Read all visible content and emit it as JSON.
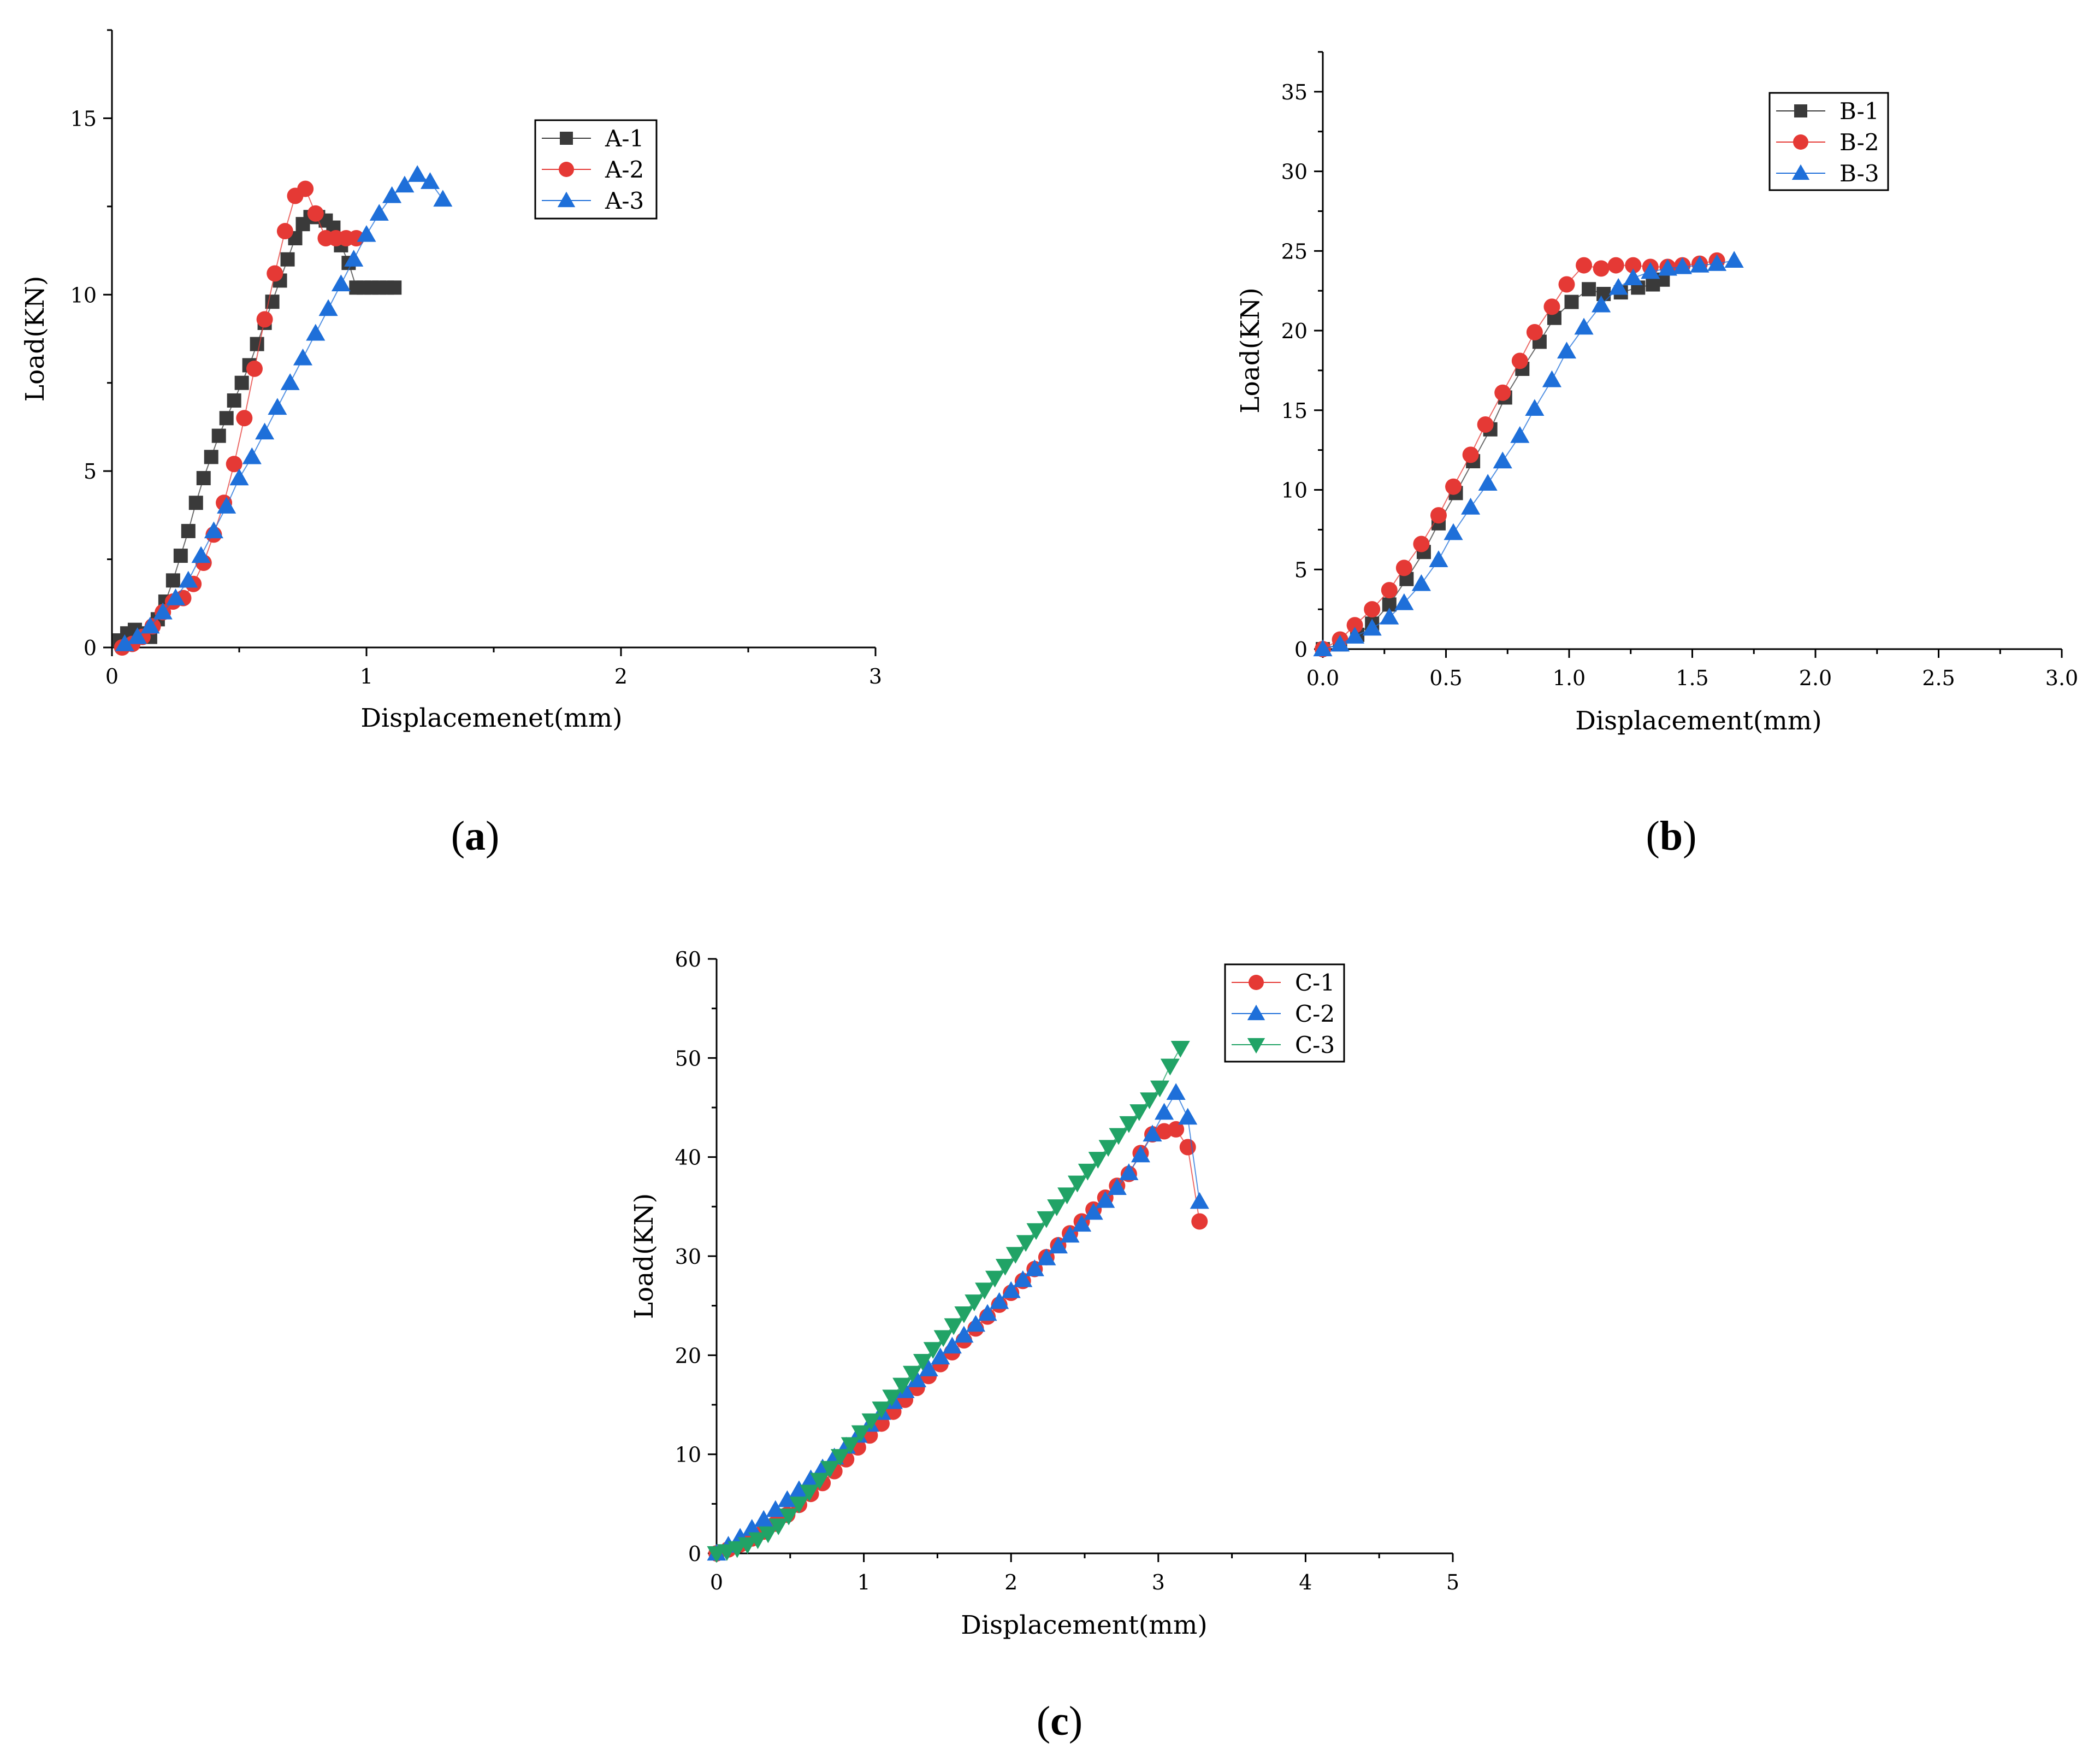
{
  "colors": {
    "black_series": "#3a3a3a",
    "red_series": "#e53935",
    "blue_series": "#1e6fd9",
    "green_series": "#21a366",
    "axis": "#000000"
  },
  "chart_data": [
    {
      "type": "scatter",
      "panel": "a",
      "caption_label": "a",
      "xlabel": "Displacemenet(mm)",
      "ylabel": "Load(KN)",
      "xlim": [
        0,
        3
      ],
      "ylim": [
        0,
        17.5
      ],
      "xticks": [
        0,
        1,
        2,
        3
      ],
      "xtick_labels": [
        "0",
        "1",
        "2",
        "3"
      ],
      "yticks": [
        0,
        5,
        10,
        15
      ],
      "ytick_labels": [
        "0",
        "5",
        "10",
        "15"
      ],
      "legend_position": "upper-middle",
      "series": [
        {
          "name": "A-1",
          "marker": "square",
          "color": "#3a3a3a",
          "x": [
            0.03,
            0.06,
            0.09,
            0.12,
            0.15,
            0.18,
            0.21,
            0.24,
            0.27,
            0.3,
            0.33,
            0.36,
            0.39,
            0.42,
            0.45,
            0.48,
            0.51,
            0.54,
            0.57,
            0.6,
            0.63,
            0.66,
            0.69,
            0.72,
            0.75,
            0.78,
            0.81,
            0.84,
            0.87,
            0.9,
            0.93,
            0.96,
            0.99,
            1.02,
            1.05,
            1.08,
            1.11
          ],
          "y": [
            0.2,
            0.4,
            0.5,
            0.4,
            0.3,
            0.8,
            1.3,
            1.9,
            2.6,
            3.3,
            4.1,
            4.8,
            5.4,
            6.0,
            6.5,
            7.0,
            7.5,
            8.0,
            8.6,
            9.2,
            9.8,
            10.4,
            11.0,
            11.6,
            12.0,
            12.2,
            12.2,
            12.1,
            11.9,
            11.4,
            10.9,
            10.2,
            10.2,
            10.2,
            10.2,
            10.2,
            10.2
          ]
        },
        {
          "name": "A-2",
          "marker": "circle",
          "color": "#e53935",
          "x": [
            0.04,
            0.08,
            0.12,
            0.16,
            0.2,
            0.24,
            0.28,
            0.32,
            0.36,
            0.4,
            0.44,
            0.48,
            0.52,
            0.56,
            0.6,
            0.64,
            0.68,
            0.72,
            0.76,
            0.8,
            0.84,
            0.88,
            0.92,
            0.96
          ],
          "y": [
            0.0,
            0.1,
            0.3,
            0.6,
            1.0,
            1.3,
            1.4,
            1.8,
            2.4,
            3.2,
            4.1,
            5.2,
            6.5,
            7.9,
            9.3,
            10.6,
            11.8,
            12.8,
            13.0,
            12.3,
            11.6,
            11.6,
            11.6,
            11.6
          ]
        },
        {
          "name": "A-3",
          "marker": "triangle-up",
          "color": "#1e6fd9",
          "x": [
            0.05,
            0.1,
            0.15,
            0.2,
            0.25,
            0.3,
            0.35,
            0.4,
            0.45,
            0.5,
            0.55,
            0.6,
            0.65,
            0.7,
            0.75,
            0.8,
            0.85,
            0.9,
            0.95,
            1.0,
            1.05,
            1.1,
            1.15,
            1.2,
            1.25,
            1.3
          ],
          "y": [
            0.1,
            0.3,
            0.6,
            1.0,
            1.4,
            1.9,
            2.6,
            3.3,
            4.0,
            4.8,
            5.4,
            6.1,
            6.8,
            7.5,
            8.2,
            8.9,
            9.6,
            10.3,
            11.0,
            11.7,
            12.3,
            12.8,
            13.1,
            13.4,
            13.2,
            12.7
          ]
        }
      ]
    },
    {
      "type": "scatter",
      "panel": "b",
      "caption_label": "b",
      "xlabel": "Displacement(mm)",
      "ylabel": "Load(KN)",
      "xlim": [
        0,
        3.0
      ],
      "ylim": [
        0,
        37.5
      ],
      "xticks": [
        0,
        0.5,
        1.0,
        1.5,
        2.0,
        2.5,
        3.0
      ],
      "xtick_labels": [
        "0.0",
        "0.5",
        "1.0",
        "1.5",
        "2.0",
        "2.5",
        "3.0"
      ],
      "yticks": [
        0,
        5,
        10,
        15,
        20,
        25,
        30,
        35
      ],
      "ytick_labels": [
        "0",
        "5",
        "10",
        "15",
        "20",
        "25",
        "30",
        "35"
      ],
      "legend_position": "upper-middle-right",
      "series": [
        {
          "name": "B-1",
          "marker": "square",
          "color": "#3a3a3a",
          "x": [
            0.0,
            0.07,
            0.14,
            0.2,
            0.27,
            0.34,
            0.41,
            0.47,
            0.54,
            0.61,
            0.68,
            0.74,
            0.81,
            0.88,
            0.94,
            1.01,
            1.08,
            1.14,
            1.21,
            1.28,
            1.34,
            1.38
          ],
          "y": [
            0.0,
            0.3,
            0.9,
            1.6,
            2.8,
            4.4,
            6.1,
            7.9,
            9.8,
            11.8,
            13.8,
            15.8,
            17.6,
            19.3,
            20.8,
            21.8,
            22.6,
            22.3,
            22.4,
            22.7,
            22.9,
            23.2
          ]
        },
        {
          "name": "B-2",
          "marker": "circle",
          "color": "#e53935",
          "x": [
            0.0,
            0.07,
            0.13,
            0.2,
            0.27,
            0.33,
            0.4,
            0.47,
            0.53,
            0.6,
            0.66,
            0.73,
            0.8,
            0.86,
            0.93,
            0.99,
            1.06,
            1.13,
            1.19,
            1.26,
            1.33,
            1.4,
            1.46,
            1.53,
            1.6
          ],
          "y": [
            0.0,
            0.6,
            1.5,
            2.5,
            3.7,
            5.1,
            6.6,
            8.4,
            10.2,
            12.2,
            14.1,
            16.1,
            18.1,
            19.9,
            21.5,
            22.9,
            24.1,
            23.9,
            24.1,
            24.1,
            24.0,
            24.0,
            24.1,
            24.2,
            24.4
          ]
        },
        {
          "name": "B-3",
          "marker": "triangle-up",
          "color": "#1e6fd9",
          "x": [
            0.0,
            0.07,
            0.13,
            0.2,
            0.27,
            0.33,
            0.4,
            0.47,
            0.53,
            0.6,
            0.67,
            0.73,
            0.8,
            0.86,
            0.93,
            0.99,
            1.06,
            1.13,
            1.2,
            1.26,
            1.33,
            1.4,
            1.46,
            1.53,
            1.6,
            1.67
          ],
          "y": [
            0.0,
            0.3,
            0.8,
            1.3,
            2.0,
            2.9,
            4.1,
            5.6,
            7.3,
            8.9,
            10.4,
            11.8,
            13.4,
            15.1,
            16.9,
            18.7,
            20.2,
            21.6,
            22.7,
            23.3,
            23.7,
            23.9,
            24.0,
            24.1,
            24.2,
            24.4
          ]
        }
      ]
    },
    {
      "type": "scatter",
      "panel": "c",
      "caption_label": "c",
      "xlabel": "Displacement(mm)",
      "ylabel": "Load(KN)",
      "xlim": [
        0,
        5
      ],
      "ylim": [
        0,
        60
      ],
      "xticks": [
        0,
        1,
        2,
        3,
        4,
        5
      ],
      "xtick_labels": [
        "0",
        "1",
        "2",
        "3",
        "4",
        "5"
      ],
      "yticks": [
        0,
        10,
        20,
        30,
        40,
        50,
        60
      ],
      "ytick_labels": [
        "0",
        "10",
        "20",
        "30",
        "40",
        "50",
        "60"
      ],
      "legend_position": "upper-right",
      "series": [
        {
          "name": "C-1",
          "marker": "circle",
          "color": "#e53935",
          "x": [
            0.0,
            0.08,
            0.16,
            0.24,
            0.32,
            0.4,
            0.48,
            0.56,
            0.64,
            0.72,
            0.8,
            0.88,
            0.96,
            1.04,
            1.12,
            1.2,
            1.28,
            1.36,
            1.44,
            1.52,
            1.6,
            1.68,
            1.76,
            1.84,
            1.92,
            2.0,
            2.08,
            2.16,
            2.24,
            2.32,
            2.4,
            2.48,
            2.56,
            2.64,
            2.72,
            2.8,
            2.88,
            2.96,
            3.04,
            3.12,
            3.2,
            3.28
          ],
          "y": [
            0.0,
            0.4,
            0.9,
            1.5,
            2.2,
            3.0,
            3.9,
            4.9,
            6.0,
            7.1,
            8.3,
            9.5,
            10.7,
            11.9,
            13.1,
            14.3,
            15.5,
            16.7,
            17.9,
            19.1,
            20.3,
            21.5,
            22.7,
            23.9,
            25.1,
            26.3,
            27.5,
            28.7,
            29.9,
            31.1,
            32.3,
            33.5,
            34.7,
            35.9,
            37.1,
            38.3,
            40.4,
            42.3,
            42.6,
            42.8,
            41.0,
            33.5
          ]
        },
        {
          "name": "C-2",
          "marker": "triangle-up",
          "color": "#1e6fd9",
          "x": [
            0.0,
            0.08,
            0.16,
            0.24,
            0.32,
            0.4,
            0.48,
            0.56,
            0.64,
            0.72,
            0.8,
            0.88,
            0.96,
            1.04,
            1.12,
            1.2,
            1.28,
            1.36,
            1.44,
            1.52,
            1.6,
            1.68,
            1.76,
            1.84,
            1.92,
            2.0,
            2.08,
            2.16,
            2.24,
            2.32,
            2.4,
            2.48,
            2.56,
            2.64,
            2.72,
            2.8,
            2.88,
            2.96,
            3.04,
            3.12,
            3.2,
            3.28
          ],
          "y": [
            0.0,
            0.8,
            1.6,
            2.5,
            3.4,
            4.4,
            5.4,
            6.4,
            7.5,
            8.6,
            9.7,
            10.8,
            11.9,
            13.0,
            14.2,
            15.3,
            16.4,
            17.5,
            18.6,
            19.8,
            20.9,
            22.0,
            23.1,
            24.2,
            25.4,
            26.5,
            27.6,
            28.7,
            29.8,
            31.0,
            32.1,
            33.2,
            34.4,
            35.6,
            36.9,
            38.4,
            40.2,
            42.3,
            44.5,
            46.5,
            44.0,
            35.5
          ]
        },
        {
          "name": "C-3",
          "marker": "triangle-down",
          "color": "#21a366",
          "x": [
            0.0,
            0.07,
            0.14,
            0.21,
            0.28,
            0.35,
            0.42,
            0.49,
            0.56,
            0.63,
            0.7,
            0.77,
            0.84,
            0.91,
            0.98,
            1.05,
            1.12,
            1.19,
            1.26,
            1.33,
            1.4,
            1.47,
            1.54,
            1.61,
            1.68,
            1.75,
            1.82,
            1.89,
            1.96,
            2.03,
            2.1,
            2.17,
            2.24,
            2.31,
            2.38,
            2.45,
            2.52,
            2.59,
            2.66,
            2.73,
            2.8,
            2.87,
            2.94,
            3.01,
            3.08,
            3.15
          ],
          "y": [
            0.0,
            0.2,
            0.5,
            0.9,
            1.4,
            2.0,
            2.8,
            3.8,
            5.0,
            6.2,
            7.4,
            8.6,
            9.8,
            11.0,
            12.2,
            13.4,
            14.6,
            15.8,
            17.0,
            18.2,
            19.4,
            20.6,
            21.8,
            23.0,
            24.2,
            25.4,
            26.6,
            27.8,
            29.0,
            30.2,
            31.4,
            32.6,
            33.8,
            35.0,
            36.2,
            37.4,
            38.6,
            39.8,
            41.0,
            42.2,
            43.4,
            44.6,
            45.8,
            47.0,
            49.2,
            51.0
          ]
        }
      ]
    }
  ]
}
